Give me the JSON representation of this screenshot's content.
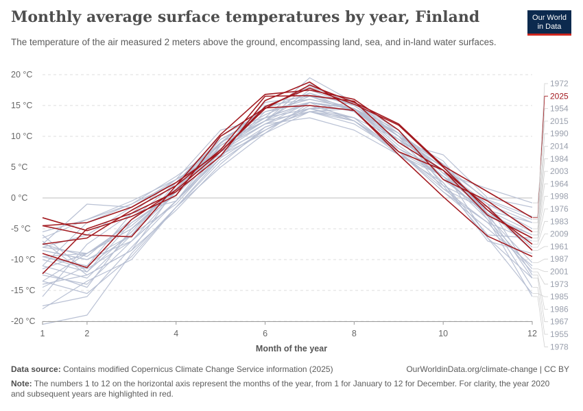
{
  "header": {
    "title": "Monthly average surface temperatures by year, Finland",
    "subtitle": "The temperature of the air measured 2 meters above the ground, encompassing land, sea, and in-land water surfaces.",
    "logo_line1": "Our World",
    "logo_line2": "in Data"
  },
  "footer": {
    "source_label": "Data source:",
    "source_text": "Contains modified Copernicus Climate Change Service information (2025)",
    "url": "OurWorldinData.org/climate-change | CC BY",
    "note_label": "Note:",
    "note_text": "The numbers 1 to 12 on the horizontal axis represent the months of the year, from 1 for January to 12 for December. For clarity, the year 2020 and subsequent years are highlighted in red."
  },
  "colors": {
    "highlight": "#a2191f",
    "base": "#b5bed2",
    "zero_line": "#bbbbbb",
    "grid": "#dddddd"
  },
  "chart_data": {
    "type": "line",
    "xlabel": "Month of the year",
    "ylabel": "",
    "x": [
      1,
      2,
      3,
      4,
      5,
      6,
      7,
      8,
      9,
      10,
      11,
      12
    ],
    "xticks": [
      1,
      2,
      4,
      6,
      8,
      10,
      12
    ],
    "ylim": [
      -20,
      20
    ],
    "yticks": [
      {
        "value": 20,
        "label": "20 °C"
      },
      {
        "value": 15,
        "label": "15 °C"
      },
      {
        "value": 10,
        "label": "10 °C"
      },
      {
        "value": 5,
        "label": "5 °C"
      },
      {
        "value": 0,
        "label": "0 °C"
      },
      {
        "value": -5,
        "label": "-5 °C"
      },
      {
        "value": -10,
        "label": "-10 °C"
      },
      {
        "value": -15,
        "label": "-15 °C"
      },
      {
        "value": -20,
        "label": "-20 °C"
      }
    ],
    "grid": "horizontal dashed",
    "legend": "right-side year labels",
    "series": [
      {
        "name": "1972",
        "highlight": false,
        "values": [
          -11.5,
          -9.0,
          -4.5,
          1.5,
          8.8,
          14.8,
          18.0,
          15.6,
          10.0,
          5.0,
          -0.3,
          -3.0
        ]
      },
      {
        "name": "2025",
        "highlight": true,
        "values": [
          -4.5,
          -4.0,
          -1.5,
          2.5,
          7.5,
          14.5,
          18.3,
          15.5,
          12.0,
          5.2,
          1.0,
          -3.2
        ]
      },
      {
        "name": "1954",
        "highlight": false,
        "values": [
          -12.0,
          -14.5,
          -5.0,
          1.5,
          9.0,
          14.5,
          17.0,
          14.0,
          10.5,
          5.5,
          -0.5,
          -3.5
        ]
      },
      {
        "name": "2015",
        "highlight": false,
        "values": [
          -5.5,
          -3.5,
          -0.5,
          3.0,
          7.5,
          11.0,
          14.5,
          15.5,
          11.0,
          4.0,
          1.5,
          -0.8
        ]
      },
      {
        "name": "1990",
        "highlight": false,
        "values": [
          -6.5,
          -3.5,
          -1.0,
          3.5,
          8.5,
          13.0,
          15.5,
          14.5,
          8.5,
          3.5,
          -2.0,
          -4.0
        ]
      },
      {
        "name": "2014",
        "highlight": false,
        "values": [
          -11.0,
          -4.0,
          -1.0,
          2.5,
          9.0,
          12.5,
          17.0,
          15.0,
          10.0,
          3.5,
          -1.0,
          -5.0
        ]
      },
      {
        "name": "1984",
        "highlight": false,
        "values": [
          -8.0,
          -9.0,
          -5.0,
          1.5,
          9.5,
          13.0,
          14.5,
          14.5,
          10.0,
          6.0,
          -3.0,
          -6.0
        ]
      },
      {
        "name": "2003",
        "highlight": false,
        "values": [
          -13.5,
          -9.0,
          -5.0,
          0.5,
          9.0,
          12.5,
          18.5,
          15.0,
          10.0,
          1.5,
          -2.0,
          -5.5
        ]
      },
      {
        "name": "1964",
        "highlight": false,
        "values": [
          -9.5,
          -11.0,
          -6.0,
          1.0,
          8.5,
          13.0,
          15.5,
          14.5,
          9.5,
          5.0,
          -2.5,
          -6.0
        ]
      },
      {
        "name": "1998",
        "highlight": false,
        "values": [
          -8.5,
          -10.0,
          -7.0,
          -0.5,
          7.5,
          12.0,
          14.5,
          13.0,
          9.5,
          2.5,
          -6.0,
          -6.5
        ]
      },
      {
        "name": "1976",
        "highlight": false,
        "values": [
          -11.0,
          -13.0,
          -6.0,
          -1.0,
          7.0,
          10.5,
          14.0,
          13.0,
          7.5,
          1.0,
          -4.0,
          -7.0
        ]
      },
      {
        "name": "1983",
        "highlight": false,
        "values": [
          -6.0,
          -12.0,
          -5.5,
          2.0,
          9.5,
          13.5,
          16.5,
          14.5,
          10.5,
          4.0,
          -2.0,
          -7.5
        ]
      },
      {
        "name": "2009",
        "highlight": false,
        "values": [
          -8.5,
          -10.0,
          -6.0,
          2.5,
          8.0,
          12.0,
          15.5,
          14.5,
          11.0,
          2.0,
          -1.5,
          -8.0
        ]
      },
      {
        "name": "1961",
        "highlight": false,
        "values": [
          -8.0,
          -6.0,
          -1.5,
          3.0,
          7.0,
          14.0,
          15.5,
          14.0,
          9.5,
          4.5,
          -2.0,
          -8.5
        ]
      },
      {
        "name": "1987",
        "highlight": false,
        "values": [
          -18.0,
          -13.5,
          -10.0,
          -1.5,
          6.5,
          11.0,
          14.5,
          12.5,
          7.5,
          3.5,
          -3.0,
          -10.5
        ]
      },
      {
        "name": "2001",
        "highlight": false,
        "values": [
          -7.0,
          -12.5,
          -8.5,
          1.5,
          8.0,
          12.5,
          17.5,
          15.0,
          10.0,
          5.5,
          -3.5,
          -11.5
        ]
      },
      {
        "name": "1973",
        "highlight": false,
        "values": [
          -9.5,
          -9.0,
          -4.0,
          0.5,
          7.5,
          15.5,
          16.5,
          14.0,
          7.5,
          1.5,
          -4.0,
          -12.0
        ]
      },
      {
        "name": "1985",
        "highlight": false,
        "values": [
          -17.5,
          -16.0,
          -8.0,
          -0.5,
          8.5,
          12.5,
          14.0,
          14.5,
          8.0,
          4.5,
          -6.5,
          -15.5
        ]
      },
      {
        "name": "1986",
        "highlight": false,
        "values": [
          -12.5,
          -14.0,
          -7.0,
          1.0,
          8.0,
          12.5,
          15.5,
          12.5,
          7.0,
          3.5,
          -1.0,
          -12.5
        ]
      },
      {
        "name": "1967",
        "highlight": false,
        "values": [
          -14.5,
          -11.0,
          -2.5,
          -0.5,
          6.5,
          15.0,
          16.0,
          14.5,
          10.0,
          5.5,
          -2.5,
          -13.0
        ]
      },
      {
        "name": "1955",
        "highlight": false,
        "values": [
          -13.5,
          -15.5,
          -9.5,
          -1.5,
          5.0,
          10.5,
          15.5,
          14.5,
          9.0,
          4.5,
          -3.0,
          -14.5
        ]
      },
      {
        "name": "1978",
        "highlight": false,
        "values": [
          -9.5,
          -11.5,
          -7.0,
          -0.5,
          7.0,
          11.5,
          14.0,
          12.5,
          8.0,
          3.5,
          -3.5,
          -16.0
        ]
      },
      {
        "name": "",
        "highlight": false,
        "values": [
          -20.5,
          -19.0,
          -9.0,
          -1.5,
          6.0,
          11.0,
          15.0,
          13.0,
          7.5,
          2.0,
          -6.5,
          -13.0
        ]
      },
      {
        "name": "",
        "highlight": false,
        "values": [
          -16.0,
          -7.5,
          -2.5,
          3.0,
          11.0,
          13.0,
          19.5,
          15.5,
          9.0,
          4.5,
          -1.0,
          -4.0
        ]
      },
      {
        "name": "",
        "highlight": false,
        "values": [
          -7.5,
          -1.0,
          -1.5,
          2.5,
          10.0,
          14.0,
          16.0,
          14.5,
          9.0,
          7.0,
          0.0,
          -1.5
        ]
      },
      {
        "name": "",
        "highlight": false,
        "values": [
          -10.0,
          -12.0,
          -4.0,
          1.0,
          8.0,
          12.0,
          13.0,
          11.0,
          7.0,
          2.5,
          -7.0,
          -9.0
        ]
      },
      {
        "name": "",
        "highlight": false,
        "values": [
          -7.5,
          -9.5,
          -3.5,
          2.5,
          9.5,
          13.5,
          16.5,
          15.5,
          10.5,
          3.0,
          -2.5,
          -6.5
        ]
      },
      {
        "name": "",
        "highlight": false,
        "values": [
          -14.0,
          -12.5,
          -8.5,
          -2.0,
          5.5,
          11.5,
          14.0,
          12.0,
          7.5,
          1.0,
          -5.0,
          -11.0
        ]
      },
      {
        "name": "",
        "highlight": true,
        "values": [
          -4.5,
          -6.0,
          -6.3,
          2.0,
          10.3,
          16.8,
          17.5,
          16.0,
          11.0,
          3.0,
          -0.5,
          -5.5
        ]
      },
      {
        "name": "",
        "highlight": true,
        "values": [
          -9.0,
          -11.3,
          -3.5,
          1.3,
          7.5,
          14.8,
          17.8,
          15.2,
          11.8,
          5.0,
          -2.0,
          -7.5
        ]
      },
      {
        "name": "",
        "highlight": true,
        "values": [
          -7.5,
          -6.5,
          -2.0,
          2.0,
          7.8,
          16.5,
          16.6,
          15.7,
          9.0,
          4.5,
          -1.5,
          -8.5
        ]
      },
      {
        "name": "",
        "highlight": true,
        "values": [
          -3.2,
          -5.3,
          -3.0,
          0.4,
          10.0,
          14.6,
          15.0,
          14.2,
          7.5,
          4.5,
          -2.8,
          -6.5
        ]
      },
      {
        "name": "",
        "highlight": true,
        "values": [
          -12.3,
          -5.0,
          -2.5,
          1.0,
          6.8,
          15.8,
          18.8,
          14.2,
          7.0,
          0.2,
          -6.2,
          -9.5
        ]
      }
    ]
  }
}
